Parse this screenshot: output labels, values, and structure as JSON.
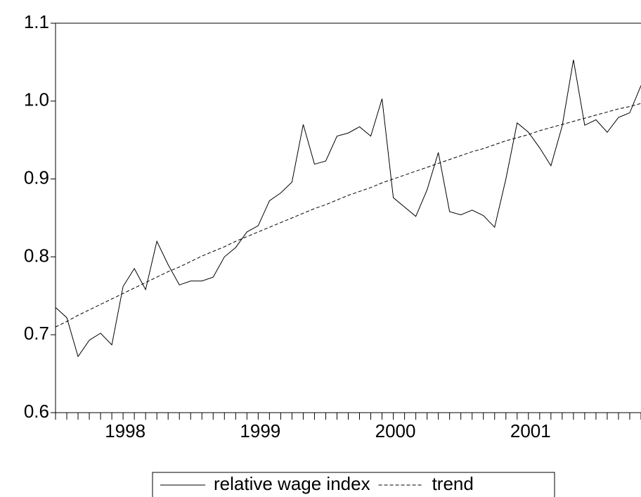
{
  "chart_data": {
    "type": "line",
    "categories": [
      null,
      null,
      null,
      null,
      null,
      null,
      "1998",
      null,
      null,
      null,
      null,
      null,
      null,
      null,
      null,
      null,
      null,
      null,
      "1999",
      null,
      null,
      null,
      null,
      null,
      null,
      null,
      null,
      null,
      null,
      null,
      "2000",
      null,
      null,
      null,
      null,
      null,
      null,
      null,
      null,
      null,
      null,
      null,
      "2001",
      null,
      null,
      null,
      null,
      null,
      null,
      null,
      null,
      null,
      null
    ],
    "series": [
      {
        "name": "relative wage index",
        "color": "#000000",
        "linestyle": "solid",
        "values": [
          0.735,
          0.722,
          0.672,
          0.693,
          0.702,
          0.687,
          0.762,
          0.785,
          0.758,
          0.82,
          0.79,
          0.764,
          0.769,
          0.769,
          0.774,
          0.8,
          0.812,
          0.832,
          0.84,
          0.872,
          0.882,
          0.896,
          0.97,
          0.919,
          0.923,
          0.955,
          0.959,
          0.967,
          0.955,
          1.003,
          0.876,
          0.864,
          0.852,
          0.886,
          0.934,
          0.858,
          0.854,
          0.86,
          0.853,
          0.838,
          0.9,
          0.972,
          0.96,
          0.94,
          0.917,
          0.968,
          1.053,
          0.969,
          0.976,
          0.96,
          0.979,
          0.985,
          1.02
        ]
      },
      {
        "name": "trend",
        "color": "#000000",
        "linestyle": "dashed",
        "values": [
          0.71,
          0.717,
          0.725,
          0.732,
          0.739,
          0.746,
          0.753,
          0.76,
          0.767,
          0.774,
          0.781,
          0.787,
          0.794,
          0.801,
          0.807,
          0.813,
          0.82,
          0.826,
          0.832,
          0.838,
          0.844,
          0.85,
          0.856,
          0.862,
          0.867,
          0.873,
          0.879,
          0.884,
          0.889,
          0.895,
          0.9,
          0.905,
          0.91,
          0.915,
          0.92,
          0.925,
          0.93,
          0.935,
          0.939,
          0.944,
          0.949,
          0.953,
          0.957,
          0.962,
          0.966,
          0.97,
          0.974,
          0.978,
          0.982,
          0.986,
          0.99,
          0.993,
          0.997
        ]
      }
    ],
    "ylim": [
      0.6,
      1.1
    ],
    "yticks": [
      0.6,
      0.7,
      0.8,
      0.9,
      {
        "value": 1,
        "label": "1.0"
      },
      1.1
    ],
    "grid": false
  }
}
